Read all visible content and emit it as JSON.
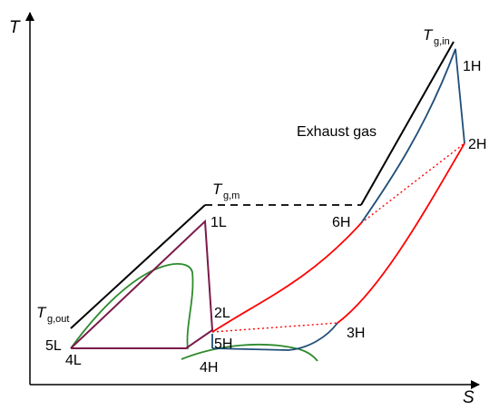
{
  "axes": {
    "x_label": "S",
    "y_label": "T"
  },
  "gas_labels": {
    "tg_in": {
      "symbol": "T",
      "sub": "g,in"
    },
    "tg_m": {
      "symbol": "T",
      "sub": "g,m"
    },
    "tg_out": {
      "symbol": "T",
      "sub": "g,out"
    },
    "exhaust": "Exhaust gas"
  },
  "state_points": {
    "p1H": "1H",
    "p2H": "2H",
    "p3H": "3H",
    "p4H": "4H",
    "p5H": "5H",
    "p6H": "6H",
    "p1L": "1L",
    "p2L": "2L",
    "p4L": "4L",
    "p5L": "5L"
  },
  "colors": {
    "axes": "#000000",
    "gas_line": "#000000",
    "low_pressure_cycle": "#7b1a4b",
    "saturation_dome": "#2e8b2e",
    "high_cycle_red": "#ff0000",
    "high_cycle_blue": "#1f4e79",
    "regenerator_dotted": "#ff0000"
  }
}
